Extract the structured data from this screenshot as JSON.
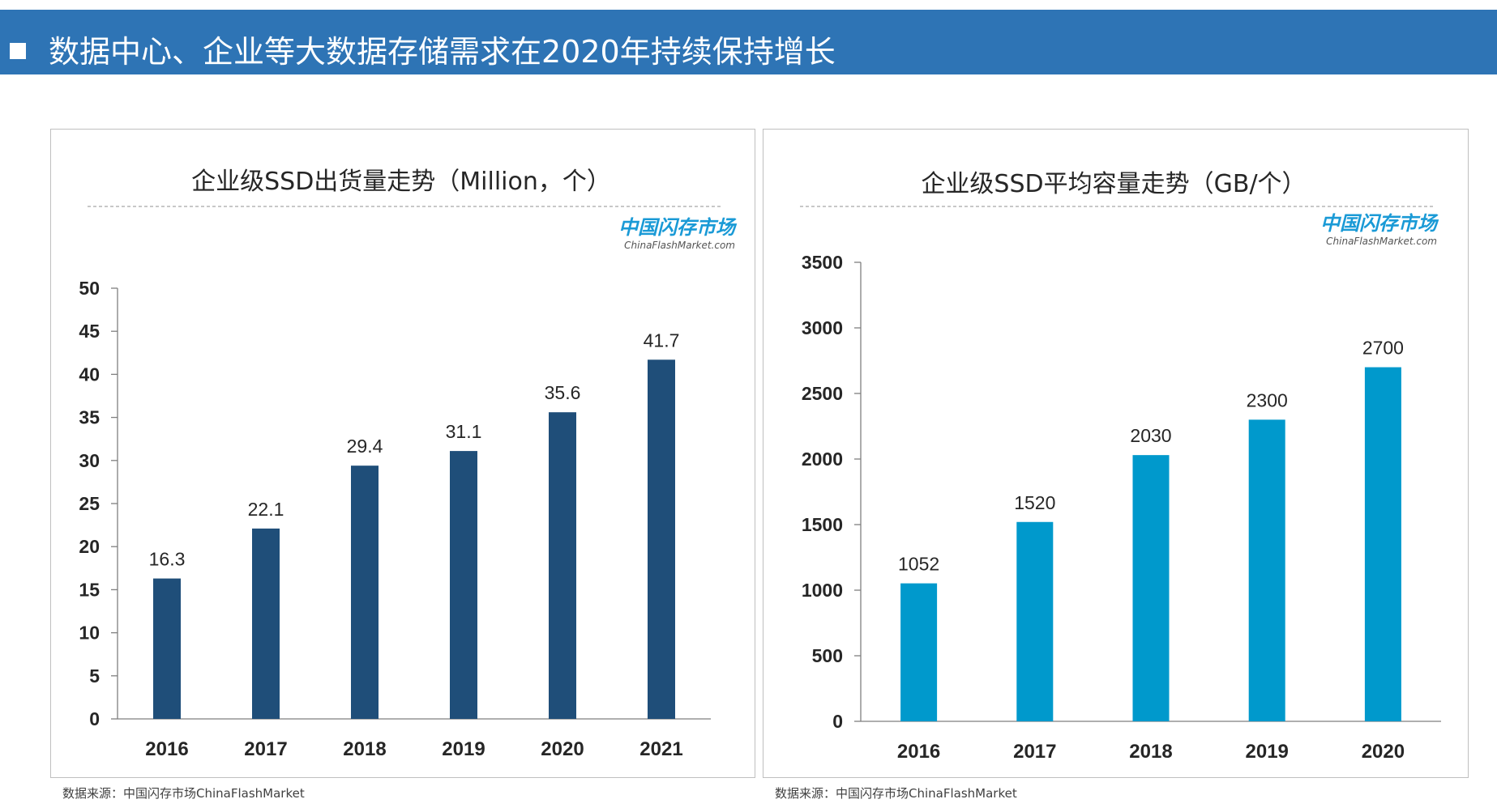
{
  "header": {
    "title": "数据中心、企业等大数据存储需求在2020年持续保持增长"
  },
  "colors": {
    "header_bg": "#2e74b5",
    "left_bar": "#1f4e79",
    "right_bar": "#0099cc",
    "watermark": "#1a9ad6"
  },
  "watermark": {
    "cn": "中国闪存市场",
    "en": "ChinaFlashMarket.com"
  },
  "sources": {
    "left": "数据来源：中国闪存市场ChinaFlashMarket",
    "right": "数据来源：中国闪存市场ChinaFlashMarket"
  },
  "chart_data": [
    {
      "type": "bar",
      "title": "企业级SSD出货量走势（Million，个）",
      "categories": [
        "2016",
        "2017",
        "2018",
        "2019",
        "2020",
        "2021"
      ],
      "values": [
        16.3,
        22.1,
        29.4,
        31.1,
        35.6,
        41.7
      ],
      "value_labels": [
        "16.3",
        "22.1",
        "29.4",
        "31.1",
        "35.6",
        "41.7"
      ],
      "ylim": [
        0,
        50
      ],
      "yticks": [
        "0",
        "5",
        "10",
        "15",
        "20",
        "25",
        "30",
        "35",
        "40",
        "45",
        "50"
      ],
      "grid": false,
      "legend": "none"
    },
    {
      "type": "bar",
      "title": "企业级SSD平均容量走势（GB/个）",
      "categories": [
        "2016",
        "2017",
        "2018",
        "2019",
        "2020"
      ],
      "values": [
        1052,
        1520,
        2030,
        2300,
        2700
      ],
      "value_labels": [
        "1052",
        "1520",
        "2030",
        "2300",
        "2700"
      ],
      "ylim": [
        0,
        3500
      ],
      "yticks": [
        "0",
        "500",
        "1000",
        "1500",
        "2000",
        "2500",
        "3000",
        "3500"
      ],
      "grid": false,
      "legend": "none"
    }
  ]
}
